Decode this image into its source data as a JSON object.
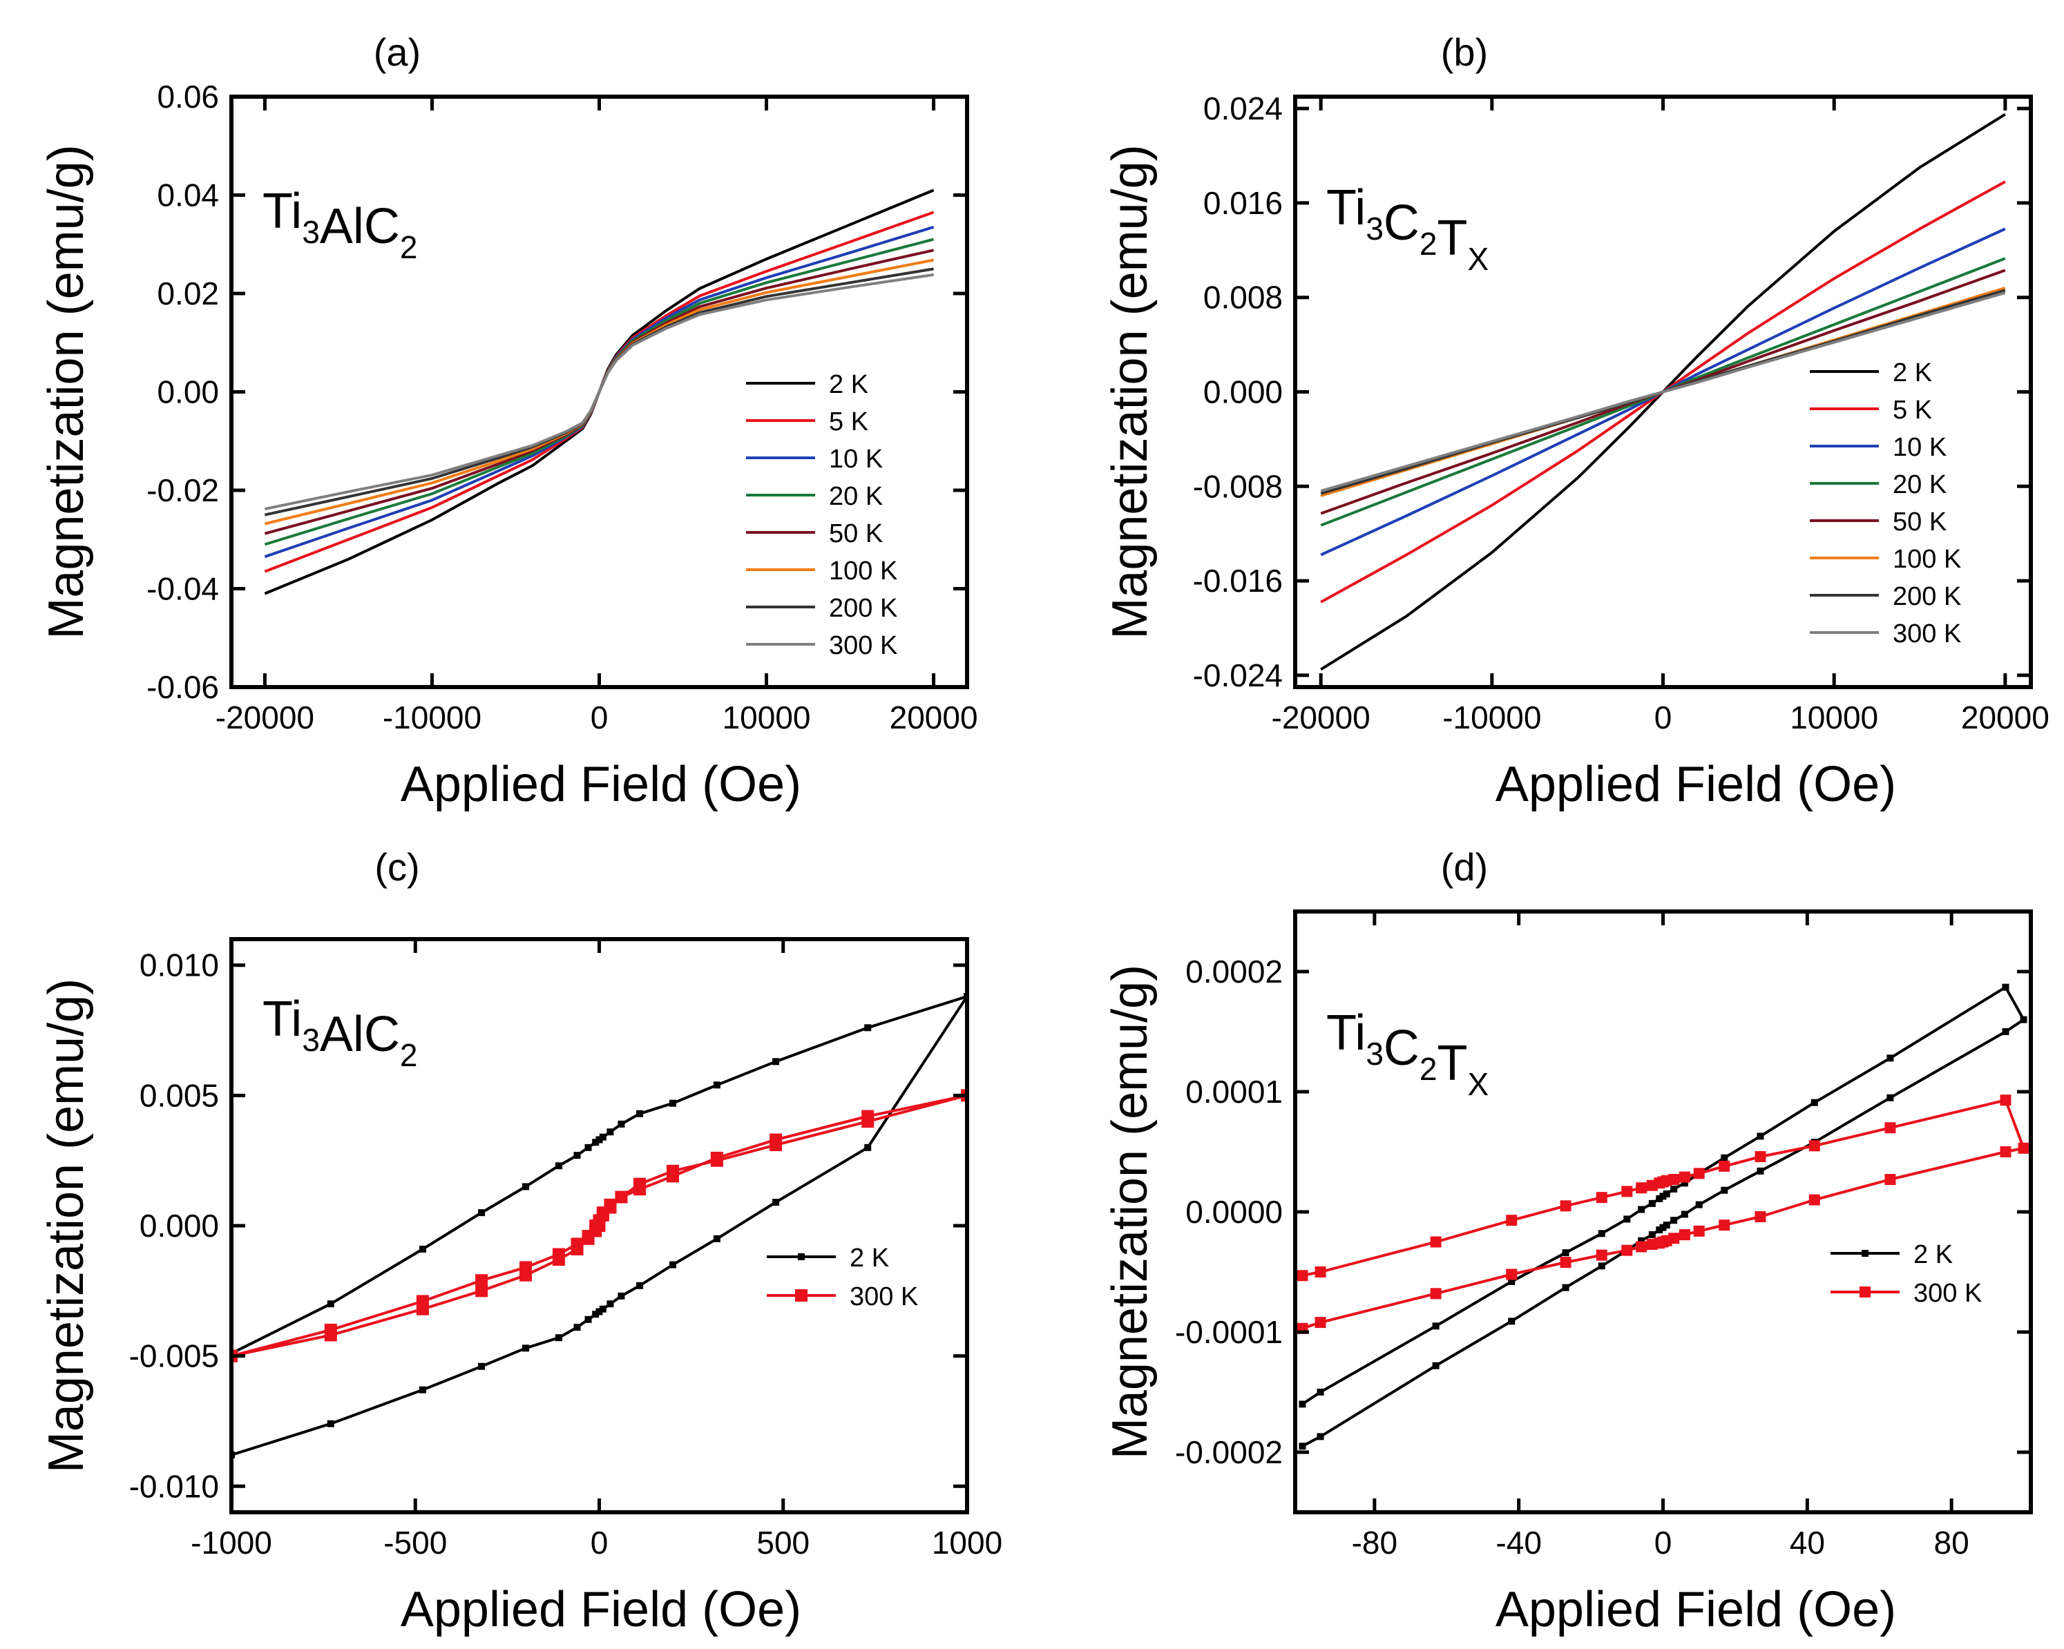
{
  "chart_data": [
    {
      "panel": "(a)",
      "type": "line",
      "sample": {
        "base": "Ti",
        "parts": [
          {
            "t": "Ti",
            "sub": "3"
          },
          {
            "t": "AlC",
            "sub": "2"
          }
        ]
      },
      "xlabel": "Applied Field (Oe)",
      "ylabel": "Magnetization (emu/g)",
      "xlim": [
        -22000,
        22000
      ],
      "ylim": [
        -0.06,
        0.06
      ],
      "xticks": [
        -20000,
        -10000,
        0,
        10000,
        20000
      ],
      "xtick_labels": [
        "-20000",
        "-10000",
        "0",
        "10000",
        "20000"
      ],
      "yticks": [
        -0.06,
        -0.04,
        -0.02,
        0.0,
        0.02,
        0.04,
        0.06
      ],
      "ytick_labels": [
        "-0.06",
        "-0.04",
        "-0.02",
        "0.00",
        "0.02",
        "0.04",
        "0.06"
      ],
      "legend_position": "lower-right",
      "x": [
        -20000,
        -15000,
        -10000,
        -6000,
        -4000,
        -2000,
        -1000,
        -500,
        0,
        500,
        1000,
        2000,
        4000,
        6000,
        10000,
        15000,
        20000
      ],
      "series": [
        {
          "name": "2 K",
          "color": "#000000",
          "values": [
            -0.041,
            -0.034,
            -0.026,
            -0.0185,
            -0.015,
            -0.01,
            -0.0075,
            -0.0045,
            0.0,
            0.0045,
            0.0075,
            0.0115,
            0.0165,
            0.021,
            0.027,
            0.034,
            0.041
          ]
        },
        {
          "name": "5 K",
          "color": "#e8121d",
          "values": [
            -0.0365,
            -0.03,
            -0.0235,
            -0.017,
            -0.0138,
            -0.0095,
            -0.0072,
            -0.0043,
            0.0,
            0.0043,
            0.0072,
            0.011,
            0.0155,
            0.0195,
            0.0245,
            0.0305,
            0.0365
          ]
        },
        {
          "name": "10 K",
          "color": "#1f3fb5",
          "values": [
            -0.0335,
            -0.0277,
            -0.022,
            -0.016,
            -0.013,
            -0.0092,
            -0.007,
            -0.0042,
            0.0,
            0.0042,
            0.007,
            0.0107,
            0.015,
            0.0187,
            0.0232,
            0.0283,
            0.0335
          ]
        },
        {
          "name": "20 K",
          "color": "#1a7a3a",
          "values": [
            -0.031,
            -0.0258,
            -0.0207,
            -0.0152,
            -0.0125,
            -0.009,
            -0.0068,
            -0.0041,
            0.0,
            0.0041,
            0.0068,
            0.0104,
            0.0145,
            0.018,
            0.0222,
            0.0266,
            0.031
          ]
        },
        {
          "name": "50 K",
          "color": "#7a1020",
          "values": [
            -0.0288,
            -0.0242,
            -0.0196,
            -0.0146,
            -0.012,
            -0.0087,
            -0.0066,
            -0.004,
            0.0,
            0.004,
            0.0066,
            0.0101,
            0.014,
            0.0173,
            0.0211,
            0.025,
            0.0288
          ]
        },
        {
          "name": "100 K",
          "color": "#f07d16",
          "values": [
            -0.0268,
            -0.0227,
            -0.0185,
            -0.014,
            -0.0116,
            -0.0085,
            -0.0065,
            -0.0039,
            0.0,
            0.0039,
            0.0065,
            0.0099,
            0.0136,
            0.0167,
            0.0202,
            0.0235,
            0.0268
          ]
        },
        {
          "name": "200 K",
          "color": "#333333",
          "values": [
            -0.025,
            -0.0213,
            -0.0176,
            -0.0134,
            -0.0112,
            -0.0083,
            -0.0064,
            -0.0038,
            0.0,
            0.0038,
            0.0064,
            0.0097,
            0.0132,
            0.0161,
            0.0194,
            0.0222,
            0.025
          ]
        },
        {
          "name": "300 K",
          "color": "#7f7f7f",
          "values": [
            -0.0238,
            -0.0203,
            -0.0169,
            -0.0129,
            -0.0109,
            -0.0081,
            -0.0063,
            -0.0038,
            0.0,
            0.0038,
            0.0063,
            0.0095,
            0.0129,
            0.0157,
            0.0187,
            0.0213,
            0.0238
          ]
        }
      ]
    },
    {
      "panel": "(b)",
      "type": "line",
      "sample": {
        "parts": [
          {
            "t": "Ti",
            "sub": "3"
          },
          {
            "t": "C",
            "sub": "2"
          },
          {
            "t": "T",
            "sub": "X"
          }
        ]
      },
      "xlabel": "Applied Field (Oe)",
      "ylabel": "Magnetization (emu/g)",
      "xlim": [
        -21500,
        21500
      ],
      "ylim": [
        -0.025,
        0.025
      ],
      "xticks": [
        -20000,
        -10000,
        0,
        10000,
        20000
      ],
      "xtick_labels": [
        "-20000",
        "-10000",
        "0",
        "10000",
        "20000"
      ],
      "yticks": [
        -0.024,
        -0.016,
        -0.008,
        0.0,
        0.008,
        0.016,
        0.024
      ],
      "ytick_labels": [
        "-0.024",
        "-0.016",
        "-0.008",
        "0.000",
        "0.008",
        "0.016",
        "0.024"
      ],
      "legend_position": "right",
      "x": [
        -20000,
        -15000,
        -10000,
        -5000,
        -2000,
        0,
        2000,
        5000,
        10000,
        15000,
        20000
      ],
      "series": [
        {
          "name": "2 K",
          "color": "#000000",
          "values": [
            -0.0235,
            -0.019,
            -0.0136,
            -0.0073,
            -0.003,
            0.0,
            0.003,
            0.0073,
            0.0136,
            0.019,
            0.0235
          ]
        },
        {
          "name": "5 K",
          "color": "#e8121d",
          "values": [
            -0.0178,
            -0.0138,
            -0.0096,
            -0.005,
            -0.002,
            0.0,
            0.002,
            0.005,
            0.0096,
            0.0138,
            0.0178
          ]
        },
        {
          "name": "10 K",
          "color": "#1f3fb5",
          "values": [
            -0.0138,
            -0.0105,
            -0.0071,
            -0.0036,
            -0.0015,
            0.0,
            0.0015,
            0.0036,
            0.0071,
            0.0105,
            0.0138
          ]
        },
        {
          "name": "20 K",
          "color": "#1a7a3a",
          "values": [
            -0.0113,
            -0.0085,
            -0.0057,
            -0.0029,
            -0.0012,
            0.0,
            0.0012,
            0.0029,
            0.0057,
            0.0085,
            0.0113
          ]
        },
        {
          "name": "50 K",
          "color": "#7a1020",
          "values": [
            -0.0103,
            -0.0077,
            -0.0052,
            -0.0026,
            -0.001,
            0.0,
            0.001,
            0.0026,
            0.0052,
            0.0077,
            0.0103
          ]
        },
        {
          "name": "100 K",
          "color": "#f07d16",
          "values": [
            -0.0088,
            -0.0066,
            -0.0044,
            -0.0022,
            -0.0009,
            0.0,
            0.0009,
            0.0022,
            0.0044,
            0.0066,
            0.0088
          ]
        },
        {
          "name": "200 K",
          "color": "#333333",
          "values": [
            -0.0086,
            -0.0065,
            -0.0043,
            -0.0022,
            -0.0009,
            0.0,
            0.0009,
            0.0022,
            0.0043,
            0.0065,
            0.0086
          ]
        },
        {
          "name": "300 K",
          "color": "#7f7f7f",
          "values": [
            -0.0084,
            -0.0063,
            -0.0042,
            -0.0021,
            -0.0008,
            0.0,
            0.0008,
            0.0021,
            0.0042,
            0.0063,
            0.0084
          ]
        }
      ]
    },
    {
      "panel": "(c)",
      "type": "line",
      "sample": {
        "parts": [
          {
            "t": "Ti",
            "sub": "3"
          },
          {
            "t": "AlC",
            "sub": "2"
          }
        ]
      },
      "xlabel": "Applied Field (Oe)",
      "ylabel": "Magnetization (emu/g)",
      "xlim": [
        -1000,
        1000
      ],
      "ylim": [
        -0.011,
        0.011
      ],
      "xticks": [
        -1000,
        -500,
        0,
        500,
        1000
      ],
      "xtick_labels": [
        "-1000",
        "-500",
        "0",
        "500",
        "1000"
      ],
      "yticks": [
        -0.01,
        -0.005,
        0.0,
        0.005,
        0.01
      ],
      "ytick_labels": [
        "-0.010",
        "-0.005",
        "0.000",
        "0.005",
        "0.010"
      ],
      "legend_position": "right",
      "series": [
        {
          "name": "2 K",
          "color": "#000000",
          "marker_size": 10,
          "x": [
            -1000,
            -730,
            -480,
            -320,
            -200,
            -110,
            -60,
            -30,
            -10,
            0,
            10,
            30,
            60,
            110,
            200,
            320,
            480,
            730,
            1000,
            730,
            480,
            320,
            200,
            110,
            60,
            30,
            10,
            0,
            -10,
            -30,
            -60,
            -110,
            -200,
            -320,
            -480,
            -730,
            -1000
          ],
          "values": [
            -0.0049,
            -0.003,
            -0.0009,
            0.0005,
            0.0015,
            0.0023,
            0.0027,
            0.003,
            0.0032,
            0.0033,
            0.0034,
            0.0036,
            0.0039,
            0.0043,
            0.0047,
            0.0054,
            0.0063,
            0.0076,
            0.0088,
            0.003,
            0.0009,
            -0.0005,
            -0.0015,
            -0.0023,
            -0.0027,
            -0.003,
            -0.0032,
            -0.0033,
            -0.0034,
            -0.0036,
            -0.0039,
            -0.0043,
            -0.0047,
            -0.0054,
            -0.0063,
            -0.0076,
            -0.0088
          ]
        },
        {
          "name": "300 K",
          "color": "#e8121d",
          "marker_size": 18,
          "x": [
            -1000,
            -730,
            -480,
            -320,
            -200,
            -110,
            -60,
            -30,
            -10,
            0,
            10,
            30,
            60,
            110,
            200,
            320,
            480,
            730,
            1000,
            730,
            480,
            320,
            200,
            110,
            60,
            30,
            10,
            0,
            -10,
            -30,
            -60,
            -110,
            -200,
            -320,
            -480,
            -730,
            -1000
          ],
          "values": [
            -0.005,
            -0.0042,
            -0.0032,
            -0.0025,
            -0.0019,
            -0.0013,
            -0.0009,
            -0.0005,
            -0.0002,
            0.0,
            0.0004,
            0.0007,
            0.0011,
            0.0016,
            0.0021,
            0.0025,
            0.0031,
            0.004,
            0.005,
            0.0042,
            0.0033,
            0.0026,
            0.0019,
            0.0014,
            0.0011,
            0.0008,
            0.0005,
            0.0002,
            0.0,
            -0.0004,
            -0.0007,
            -0.0011,
            -0.0016,
            -0.0021,
            -0.0029,
            -0.004,
            -0.005
          ]
        }
      ]
    },
    {
      "panel": "(d)",
      "type": "line",
      "sample": {
        "parts": [
          {
            "t": "Ti",
            "sub": "3"
          },
          {
            "t": "C",
            "sub": "2"
          },
          {
            "t": "T",
            "sub": "X"
          }
        ]
      },
      "xlabel": "Applied Field (Oe)",
      "ylabel": "Magnetization (emu/g)",
      "xlim": [
        -102,
        102
      ],
      "ylim": [
        -0.00025,
        0.00025
      ],
      "xticks": [
        -80,
        -40,
        0,
        40,
        80
      ],
      "xtick_labels": [
        "-80",
        "-40",
        "0",
        "40",
        "80"
      ],
      "yticks": [
        -0.0002,
        -0.0001,
        0.0,
        0.0001,
        0.0002
      ],
      "ytick_labels": [
        "-0.0002",
        "-0.0001",
        "0.0000",
        "0.0001",
        "0.0002"
      ],
      "legend_position": "right",
      "series": [
        {
          "name": "2 K",
          "color": "#000000",
          "marker_size": 10,
          "x": [
            -100,
            -95,
            -63,
            -42,
            -27,
            -17,
            -10,
            -6,
            -3,
            -1,
            0,
            1,
            3,
            6,
            10,
            17,
            27,
            42,
            63,
            95,
            100,
            95,
            63,
            42,
            27,
            17,
            10,
            6,
            3,
            1,
            0,
            -1,
            -3,
            -6,
            -10,
            -17,
            -27,
            -42,
            -63,
            -95,
            -100
          ],
          "values": [
            -0.000195,
            -0.000187,
            -0.000128,
            -9.1e-05,
            -6.3e-05,
            -4.5e-05,
            -3.2e-05,
            -2.4e-05,
            -1.9e-05,
            -1.5e-05,
            -1.3e-05,
            -1.1e-05,
            -7e-06,
            -2e-06,
            6e-06,
            1.8e-05,
            3.4e-05,
            5.8e-05,
            9.5e-05,
            0.00015,
            0.00016,
            0.000187,
            0.000128,
            9.1e-05,
            6.3e-05,
            4.5e-05,
            3.2e-05,
            2.4e-05,
            1.9e-05,
            1.5e-05,
            1.3e-05,
            1.1e-05,
            7e-06,
            2e-06,
            -6e-06,
            -1.8e-05,
            -3.4e-05,
            -5.8e-05,
            -9.5e-05,
            -0.00015,
            -0.00016
          ]
        },
        {
          "name": "300 K",
          "color": "#e8121d",
          "marker_size": 16,
          "x": [
            -100,
            -95,
            -63,
            -42,
            -27,
            -17,
            -10,
            -6,
            -3,
            -1,
            0,
            1,
            3,
            6,
            10,
            17,
            27,
            42,
            63,
            95,
            100,
            95,
            63,
            42,
            27,
            17,
            10,
            6,
            3,
            1,
            0,
            -1,
            -3,
            -6,
            -10,
            -17,
            -27,
            -42,
            -63,
            -95,
            -100
          ],
          "values": [
            -9.7e-05,
            -9.2e-05,
            -6.8e-05,
            -5.2e-05,
            -4.2e-05,
            -3.6e-05,
            -3.2e-05,
            -2.9e-05,
            -2.7e-05,
            -2.6e-05,
            -2.5e-05,
            -2.4e-05,
            -2.2e-05,
            -1.9e-05,
            -1.6e-05,
            -1.1e-05,
            -4e-06,
            1e-05,
            2.7e-05,
            5e-05,
            5.3e-05,
            9.3e-05,
            7e-05,
            5.5e-05,
            4.6e-05,
            3.8e-05,
            3.2e-05,
            2.9e-05,
            2.7e-05,
            2.6e-05,
            2.5e-05,
            2.4e-05,
            2.2e-05,
            2e-05,
            1.7e-05,
            1.2e-05,
            5e-06,
            -7e-06,
            -2.5e-05,
            -5e-05,
            -5.3e-05
          ]
        }
      ]
    }
  ]
}
